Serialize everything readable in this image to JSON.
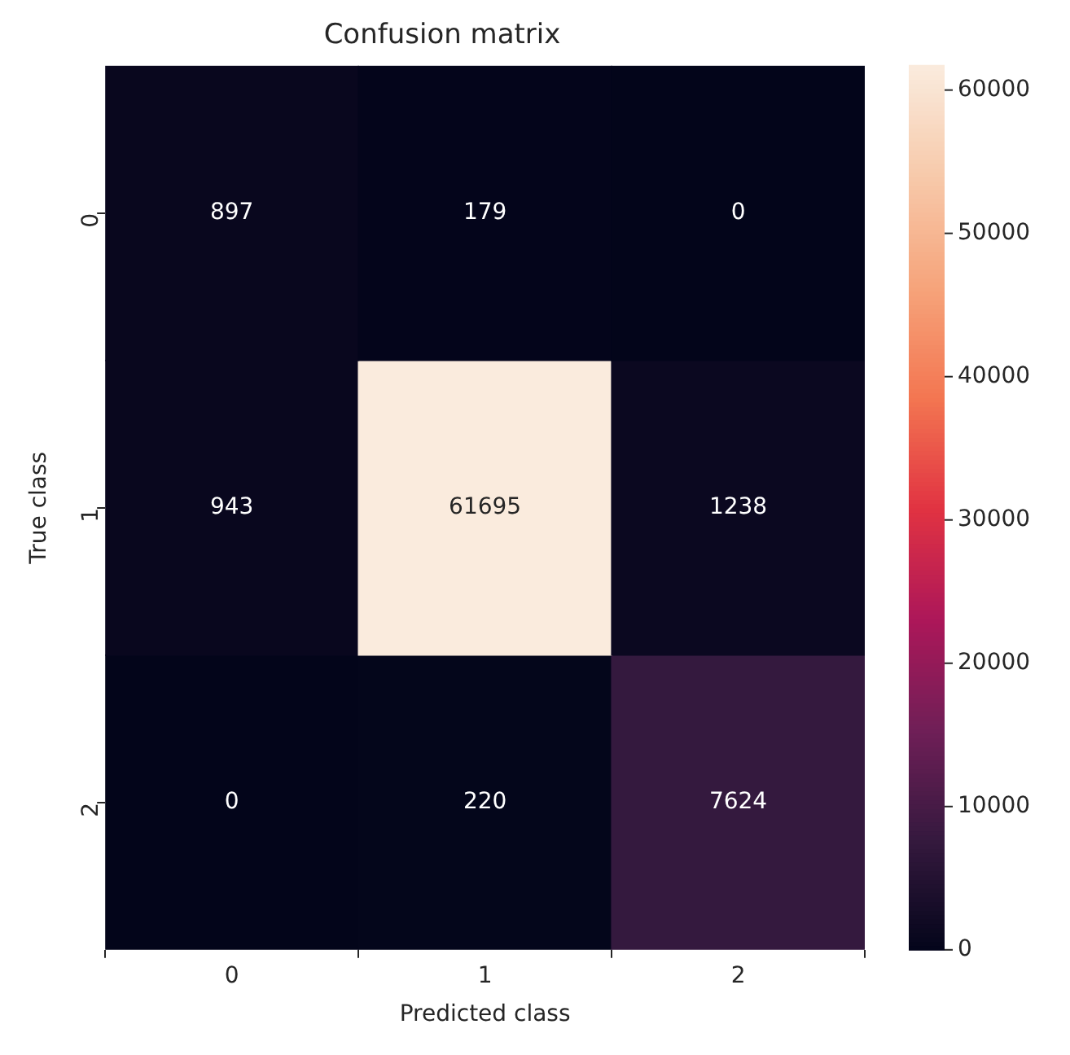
{
  "chart_data": {
    "type": "heatmap",
    "title": "Confusion matrix",
    "xlabel": "Predicted class",
    "ylabel": "True class",
    "categories": [
      "0",
      "1",
      "2"
    ],
    "y_categories": [
      "0",
      "1",
      "2"
    ],
    "cells": [
      [
        897,
        179,
        0
      ],
      [
        943,
        61695,
        1238
      ],
      [
        0,
        220,
        7624
      ]
    ],
    "clim": [
      0,
      61695
    ],
    "cticks": [
      0,
      10000,
      20000,
      30000,
      40000,
      50000,
      60000
    ],
    "data_labels": true
  }
}
